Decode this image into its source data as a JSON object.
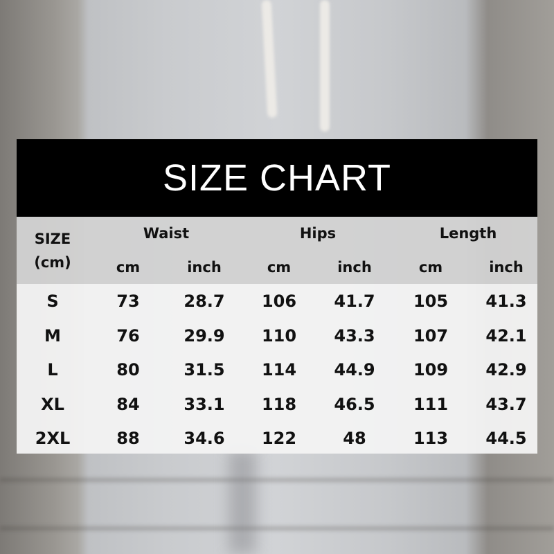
{
  "title": "SIZE CHART",
  "header": {
    "size_label": "SIZE",
    "unit_label": "(cm)",
    "groups": [
      "Waist",
      "Hips",
      "Length"
    ],
    "subcolumns": [
      "cm",
      "inch",
      "cm",
      "inch",
      "cm",
      "inch"
    ]
  },
  "rows": [
    {
      "size": "S",
      "values": [
        "73",
        "28.7",
        "106",
        "41.7",
        "105",
        "41.3"
      ]
    },
    {
      "size": "M",
      "values": [
        "76",
        "29.9",
        "110",
        "43.3",
        "107",
        "42.1"
      ]
    },
    {
      "size": "L",
      "values": [
        "80",
        "31.5",
        "114",
        "44.9",
        "109",
        "42.9"
      ]
    },
    {
      "size": "XL",
      "values": [
        "84",
        "33.1",
        "118",
        "46.5",
        "111",
        "43.7"
      ]
    },
    {
      "size": "2XL",
      "values": [
        "88",
        "34.6",
        "122",
        "48",
        "113",
        "44.5"
      ]
    }
  ]
}
